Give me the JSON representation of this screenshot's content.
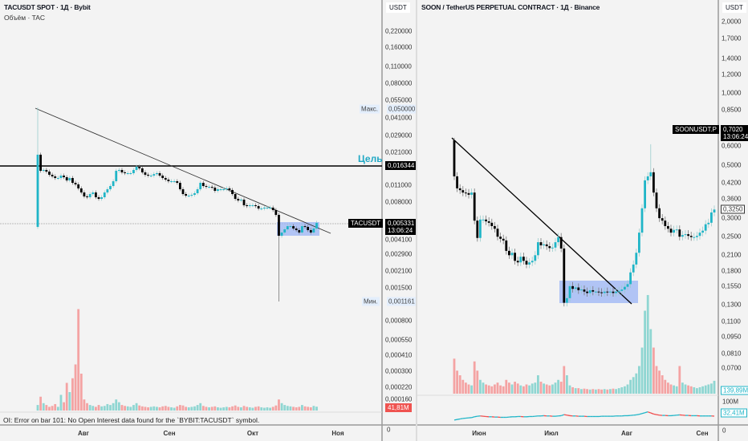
{
  "left": {
    "title": "TACUSDT SPOT · 1Д · Bybit",
    "subtitle": "Объём · TAC",
    "currency": "USDT",
    "error_text": "OI: Error on bar 101: No Open Interest data found for the `BYBIT:TACUSDT` symbol.",
    "goal_label": "Цель",
    "goal_price": "0,016344",
    "max_label": "Макс.",
    "max_price": "0,050000",
    "min_label": "Мин.",
    "min_price": "0,001161",
    "symbol_tag": "TACUSDT",
    "last_price": "0,005331",
    "countdown": "13:06:24",
    "volume_label": "41,81M",
    "zero_label": "0",
    "price_ticks": [
      "0,220000",
      "0,160000",
      "0,110000",
      "0,080000",
      "0,055000",
      "0,041000",
      "0,029000",
      "0,021000",
      "0,011000",
      "0,008000",
      "0,004100",
      "0,002900",
      "0,002100",
      "0,001500",
      "0,000800",
      "0,000550",
      "0,000410",
      "0,000300",
      "0,000220",
      "0,000160"
    ],
    "time_labels": [
      "Авг",
      "Сен",
      "Окт",
      "Ноя"
    ]
  },
  "right": {
    "title": "SOON / TetherUS PERPETUAL CONTRACT · 1Д · Binance",
    "currency": "USDT",
    "symbol_tag": "SOONUSDT.P",
    "tag_price": "0,7020",
    "countdown": "13:06:24",
    "last_price": "0,3250",
    "volume_label": "139,89M",
    "oi_axis_label": "100M",
    "oi_label": "32,41M",
    "zero_label": "0",
    "price_ticks": [
      "2,0000",
      "1,7000",
      "1,4000",
      "1,2000",
      "1,0000",
      "0,8500",
      "0,6000",
      "0,5000",
      "0,4200",
      "0,3600",
      "0,3000",
      "0,2500",
      "0,2100",
      "0,1800",
      "0,1550",
      "0,1300",
      "0,1100",
      "0,0950",
      "0,0810",
      "0,0700"
    ],
    "time_labels": [
      "Июн",
      "Июл",
      "Авг",
      "Сен"
    ]
  },
  "colors": {
    "up": "#1fb5c7",
    "down": "#000000",
    "vol_up": "#8fd6d2",
    "vol_down": "#f4a3a3",
    "zone": "#9bb4f5",
    "oi_up": "#1fb5c7",
    "oi_down": "#ef4d4d"
  },
  "chart_data": [
    {
      "type": "candlestick",
      "title": "TACUSDT SPOT · 1Д · Bybit",
      "scale": "log",
      "ylabel": "USDT",
      "xticks": [
        "Авг",
        "Сен",
        "Окт",
        "Ноя"
      ],
      "first_open": 0.00493,
      "notable_wicks": [
        {
          "index": 0,
          "high": 0.05
        },
        {
          "index": 83,
          "low": 0.001161
        }
      ],
      "close": [
        0.02,
        0.01463,
        0.01487,
        0.0144,
        0.01355,
        0.01313,
        0.01272,
        0.01272,
        0.01333,
        0.01292,
        0.01215,
        0.01272,
        0.01159,
        0.01124,
        0.0104,
        0.00961,
        0.0089,
        0.00876,
        0.00932,
        0.00961,
        0.00876,
        0.00849,
        0.00876,
        0.00961,
        0.01023,
        0.01089,
        0.01195,
        0.01463,
        0.01487,
        0.01419,
        0.01397,
        0.01397,
        0.01397,
        0.01487,
        0.01582,
        0.01534,
        0.01419,
        0.01355,
        0.01333,
        0.01333,
        0.01372,
        0.01397,
        0.01333,
        0.01272,
        0.01233,
        0.01195,
        0.01195,
        0.01195,
        0.01159,
        0.01023,
        0.00932,
        0.00904,
        0.00904,
        0.00918,
        0.00947,
        0.01023,
        0.01159,
        0.01089,
        0.01072,
        0.01072,
        0.01056,
        0.00992,
        0.01023,
        0.01023,
        0.01023,
        0.0104,
        0.01008,
        0.00932,
        0.00849,
        0.00823,
        0.00836,
        0.0075,
        0.00738,
        0.0075,
        0.0075,
        0.00738,
        0.00704,
        0.00704,
        0.00716,
        0.00716,
        0.00716,
        0.00683,
        0.00622,
        0.00415,
        0.00442,
        0.0047,
        0.005,
        0.005,
        0.00478,
        0.00463,
        0.00442,
        0.005,
        0.00493,
        0.00463,
        0.00442,
        0.00478,
        0.00533
      ],
      "volume_m": [
        60,
        150,
        80,
        60,
        40,
        50,
        70,
        40,
        170,
        90,
        300,
        200,
        350,
        500,
        1100,
        400,
        120,
        80,
        60,
        50,
        40,
        60,
        45,
        50,
        70,
        60,
        80,
        120,
        90,
        60,
        50,
        45,
        40,
        60,
        80,
        55,
        45,
        40,
        35,
        40,
        45,
        40,
        35,
        45,
        50,
        40,
        35,
        30,
        45,
        60,
        55,
        40,
        35,
        40,
        45,
        60,
        80,
        50,
        40,
        35,
        40,
        45,
        35,
        30,
        35,
        40,
        35,
        45,
        55,
        40,
        35,
        50,
        40,
        35,
        30,
        40,
        45,
        35,
        30,
        35,
        30,
        40,
        55,
        120,
        80,
        60,
        50,
        45,
        40,
        35,
        40,
        60,
        45,
        40,
        35,
        50,
        41.81
      ]
    },
    {
      "type": "candlestick",
      "title": "SOON / TetherUS PERPETUAL CONTRACT · 1Д · Binance",
      "scale": "log",
      "ylabel": "USDT",
      "xticks": [
        "Июн",
        "Июл",
        "Авг",
        "Сен"
      ],
      "first_open": 0.635,
      "notable_wicks": [
        {
          "index": 0,
          "high": 0.65
        },
        {
          "index": 68,
          "high": 0.611
        }
      ],
      "close": [
        0.448,
        0.399,
        0.392,
        0.383,
        0.381,
        0.375,
        0.383,
        0.292,
        0.247,
        0.295,
        0.295,
        0.29,
        0.286,
        0.277,
        0.27,
        0.25,
        0.245,
        0.241,
        0.218,
        0.209,
        0.214,
        0.198,
        0.195,
        0.206,
        0.198,
        0.191,
        0.195,
        0.198,
        0.209,
        0.237,
        0.23,
        0.232,
        0.228,
        0.224,
        0.225,
        0.237,
        0.249,
        0.223,
        0.132,
        0.138,
        0.155,
        0.151,
        0.153,
        0.149,
        0.15,
        0.147,
        0.145,
        0.149,
        0.147,
        0.147,
        0.146,
        0.145,
        0.147,
        0.146,
        0.147,
        0.145,
        0.147,
        0.148,
        0.15,
        0.154,
        0.158,
        0.177,
        0.191,
        0.214,
        0.26,
        0.329,
        0.431,
        0.448,
        0.466,
        0.383,
        0.329,
        0.299,
        0.292,
        0.277,
        0.27,
        0.26,
        0.267,
        0.268,
        0.25,
        0.254,
        0.256,
        0.252,
        0.249,
        0.249,
        0.252,
        0.26,
        0.265,
        0.282,
        0.286,
        0.316,
        0.325
      ],
      "volume_m": [
        380,
        250,
        200,
        150,
        120,
        100,
        90,
        350,
        250,
        150,
        120,
        100,
        90,
        80,
        100,
        120,
        90,
        80,
        150,
        120,
        100,
        130,
        110,
        90,
        80,
        100,
        90,
        110,
        120,
        200,
        130,
        110,
        100,
        90,
        100,
        120,
        150,
        130,
        300,
        200,
        90,
        70,
        60,
        60,
        50,
        55,
        50,
        45,
        50,
        45,
        50,
        45,
        50,
        45,
        50,
        55,
        50,
        60,
        70,
        80,
        100,
        150,
        180,
        220,
        300,
        500,
        900,
        1070,
        700,
        500,
        300,
        250,
        200,
        150,
        120,
        100,
        90,
        80,
        300,
        120,
        100,
        90,
        80,
        70,
        60,
        70,
        80,
        90,
        100,
        110,
        139.89
      ],
      "open_interest_m": [
        18,
        20,
        22,
        24,
        25,
        26,
        27,
        30,
        32,
        33,
        32,
        31,
        30,
        30,
        29,
        29,
        28,
        28,
        28,
        29,
        30,
        30,
        31,
        31,
        30,
        30,
        31,
        31,
        32,
        33,
        33,
        34,
        33,
        33,
        32,
        32,
        33,
        34,
        38,
        36,
        34,
        33,
        33,
        32,
        32,
        32,
        31,
        31,
        31,
        31,
        31,
        32,
        32,
        32,
        32,
        32,
        33,
        33,
        33,
        34,
        34,
        35,
        36,
        37,
        39,
        42,
        45,
        48,
        44,
        40,
        38,
        36,
        35,
        35,
        34,
        34,
        35,
        36,
        37,
        36,
        35,
        35,
        34,
        34,
        34,
        33,
        33,
        33,
        33,
        33,
        32.41
      ]
    }
  ]
}
